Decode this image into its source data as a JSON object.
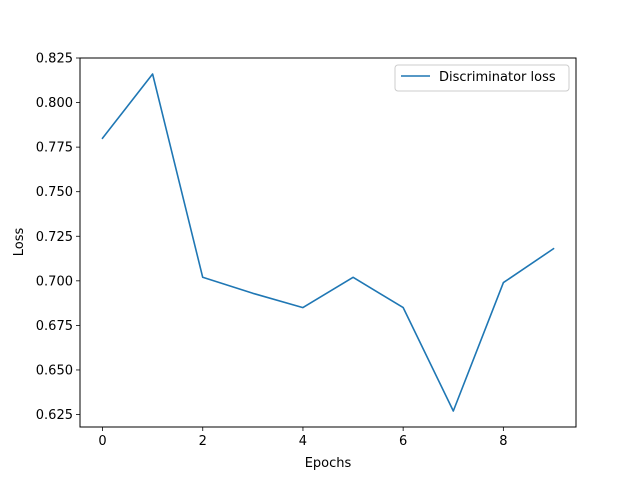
{
  "chart_data": {
    "type": "line",
    "title": "",
    "xlabel": "Epochs",
    "ylabel": "Loss",
    "xlim": [
      -0.45,
      9.45
    ],
    "ylim": [
      0.618,
      0.825
    ],
    "xticks": [
      0,
      2,
      4,
      6,
      8
    ],
    "xtick_labels": [
      "0",
      "2",
      "4",
      "6",
      "8"
    ],
    "yticks": [
      0.625,
      0.65,
      0.675,
      0.7,
      0.725,
      0.75,
      0.775,
      0.8,
      0.825
    ],
    "ytick_labels": [
      "0.625",
      "0.650",
      "0.675",
      "0.700",
      "0.725",
      "0.750",
      "0.775",
      "0.800",
      "0.825"
    ],
    "grid": false,
    "legend_position": "upper-right",
    "series": [
      {
        "name": "Discriminator loss",
        "color": "#1f77b4",
        "x": [
          0,
          1,
          2,
          3,
          4,
          5,
          6,
          7,
          8,
          9
        ],
        "y": [
          0.78,
          0.816,
          0.702,
          0.693,
          0.685,
          0.702,
          0.685,
          0.627,
          0.699,
          0.718
        ]
      }
    ]
  }
}
